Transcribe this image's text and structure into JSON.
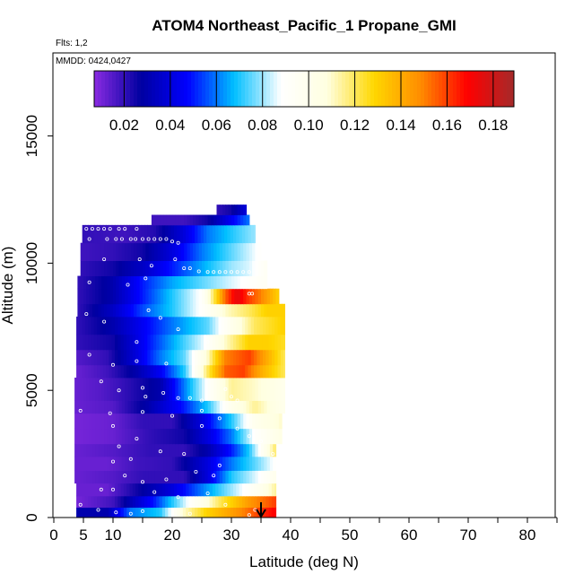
{
  "chart_data": {
    "type": "heatmap",
    "title": "ATOM4 Northeast_Pacific_1 Propane_GMI",
    "flights_note": "Flts: 1,2",
    "dates_note": "MMDD: 0424,0427",
    "xlabel": "Latitude (deg N)",
    "ylabel": "Altitude (m)",
    "xlim": [
      0,
      85
    ],
    "ylim": [
      0,
      17500
    ],
    "x_tick_labels": [
      "0",
      "5",
      "10",
      "20",
      "30",
      "40",
      "50",
      "60",
      "70",
      "80"
    ],
    "x_tick_values": [
      0,
      5,
      10,
      20,
      30,
      40,
      50,
      60,
      70,
      80
    ],
    "y_tick_labels": [
      "0",
      "5000",
      "10000",
      "15000"
    ],
    "y_tick_values": [
      0,
      5000,
      10000,
      15000
    ],
    "colorbar": {
      "range": [
        0.007,
        0.189
      ],
      "tick_labels": [
        "0.02",
        "0.04",
        "0.06",
        "0.08",
        "0.10",
        "0.12",
        "0.14",
        "0.16",
        "0.18"
      ],
      "tick_values": [
        0.02,
        0.04,
        0.06,
        0.08,
        0.1,
        0.12,
        0.14,
        0.16,
        0.18
      ],
      "colors": [
        "#8a2be2",
        "#0000a0",
        "#0000ff",
        "#00bfff",
        "#ffffff",
        "#ffffe0",
        "#ffd700",
        "#ff8c00",
        "#ff0000",
        "#a52a2a"
      ]
    },
    "grid": false,
    "arrow_marker": {
      "latitude": 35,
      "direction": "down"
    },
    "bands": [
      {
        "alt": [
          0,
          400
        ],
        "lat": [
          3.8,
          37.5
        ],
        "k": [
          [
            3.8,
            0.03
          ],
          [
            9,
            0.03
          ],
          [
            13,
            0.06
          ],
          [
            18,
            0.07
          ],
          [
            22,
            0.11
          ],
          [
            26,
            0.13
          ],
          [
            32,
            0.15
          ],
          [
            36,
            0.165
          ],
          [
            37.5,
            0.17
          ]
        ]
      },
      {
        "alt": [
          400,
          850
        ],
        "lat": [
          3.8,
          37.5
        ],
        "k": [
          [
            3.8,
            0.01
          ],
          [
            10,
            0.018
          ],
          [
            17,
            0.05
          ],
          [
            23,
            0.09
          ],
          [
            28,
            0.12
          ],
          [
            33,
            0.145
          ],
          [
            37.5,
            0.16
          ]
        ]
      },
      {
        "alt": [
          850,
          1350
        ],
        "lat": [
          3.8,
          37.5
        ],
        "k": [
          [
            3.8,
            0.012
          ],
          [
            9,
            0.012
          ],
          [
            14,
            0.025
          ],
          [
            20,
            0.04
          ],
          [
            25,
            0.06
          ],
          [
            30,
            0.08
          ],
          [
            35,
            0.1
          ],
          [
            37.5,
            0.115
          ]
        ]
      },
      {
        "alt": [
          1350,
          1850
        ],
        "lat": [
          3.5,
          37.5
        ],
        "k": [
          [
            3.5,
            0.012
          ],
          [
            10,
            0.015
          ],
          [
            15,
            0.02
          ],
          [
            22,
            0.02
          ],
          [
            26,
            0.04
          ],
          [
            30,
            0.07
          ],
          [
            34,
            0.085
          ],
          [
            37.5,
            0.1
          ]
        ]
      },
      {
        "alt": [
          1850,
          2400
        ],
        "lat": [
          3.5,
          37.5
        ],
        "k": [
          [
            3.5,
            0.012
          ],
          [
            9,
            0.012
          ],
          [
            14,
            0.018
          ],
          [
            20,
            0.02
          ],
          [
            26,
            0.04
          ],
          [
            30,
            0.06
          ],
          [
            34,
            0.075
          ],
          [
            37.5,
            0.09
          ]
        ]
      },
      {
        "alt": [
          2400,
          2900
        ],
        "lat": [
          3.5,
          37.5
        ],
        "k": [
          [
            3.5,
            0.012
          ],
          [
            10,
            0.015
          ],
          [
            16,
            0.02
          ],
          [
            22,
            0.02
          ],
          [
            26,
            0.03
          ],
          [
            30,
            0.05
          ],
          [
            33,
            0.07
          ],
          [
            37.5,
            0.12
          ]
        ]
      },
      {
        "alt": [
          2900,
          3500
        ],
        "lat": [
          3.5,
          38.5
        ],
        "k": [
          [
            3.5,
            0.01
          ],
          [
            10,
            0.012
          ],
          [
            16,
            0.02
          ],
          [
            22,
            0.025
          ],
          [
            26,
            0.04
          ],
          [
            30,
            0.06
          ],
          [
            34,
            0.09
          ],
          [
            38.5,
            0.105
          ]
        ]
      },
      {
        "alt": [
          3500,
          4100
        ],
        "lat": [
          3.5,
          38.5
        ],
        "k": [
          [
            3.5,
            0.01
          ],
          [
            10,
            0.012
          ],
          [
            15,
            0.02
          ],
          [
            20,
            0.02
          ],
          [
            25,
            0.04
          ],
          [
            30,
            0.07
          ],
          [
            34,
            0.1
          ],
          [
            38.5,
            0.11
          ]
        ]
      },
      {
        "alt": [
          4100,
          4600
        ],
        "lat": [
          3.5,
          39.0
        ],
        "k": [
          [
            3.5,
            0.012
          ],
          [
            10,
            0.015
          ],
          [
            16,
            0.03
          ],
          [
            22,
            0.05
          ],
          [
            26,
            0.07
          ],
          [
            30,
            0.1
          ],
          [
            34,
            0.115
          ],
          [
            39,
            0.1
          ]
        ]
      },
      {
        "alt": [
          4600,
          5500
        ],
        "lat": [
          3.5,
          39.0
        ],
        "k": [
          [
            3.5,
            0.012
          ],
          [
            8,
            0.015
          ],
          [
            12,
            0.02
          ],
          [
            18,
            0.03
          ],
          [
            22,
            0.06
          ],
          [
            26,
            0.09
          ],
          [
            30,
            0.115
          ],
          [
            34,
            0.11
          ],
          [
            39,
            0.1
          ]
        ]
      },
      {
        "alt": [
          5500,
          6000
        ],
        "lat": [
          3.8,
          39.0
        ],
        "k": [
          [
            3.8,
            0.012
          ],
          [
            9,
            0.018
          ],
          [
            14,
            0.03
          ],
          [
            18,
            0.045
          ],
          [
            22,
            0.07
          ],
          [
            26,
            0.12
          ],
          [
            29,
            0.155
          ],
          [
            32,
            0.16
          ],
          [
            35,
            0.14
          ],
          [
            39,
            0.12
          ]
        ]
      },
      {
        "alt": [
          6000,
          6600
        ],
        "lat": [
          3.8,
          39.0
        ],
        "k": [
          [
            3.8,
            0.015
          ],
          [
            9,
            0.02
          ],
          [
            14,
            0.04
          ],
          [
            18,
            0.06
          ],
          [
            22,
            0.075
          ],
          [
            26,
            0.11
          ],
          [
            29,
            0.15
          ],
          [
            33,
            0.16
          ],
          [
            36,
            0.14
          ],
          [
            39,
            0.12
          ]
        ]
      },
      {
        "alt": [
          6600,
          7200
        ],
        "lat": [
          3.8,
          39.0
        ],
        "k": [
          [
            3.8,
            0.02
          ],
          [
            10,
            0.025
          ],
          [
            15,
            0.045
          ],
          [
            20,
            0.065
          ],
          [
            25,
            0.085
          ],
          [
            29,
            0.11
          ],
          [
            33,
            0.13
          ],
          [
            36,
            0.13
          ],
          [
            39,
            0.125
          ]
        ]
      },
      {
        "alt": [
          7200,
          7900
        ],
        "lat": [
          3.8,
          39.0
        ],
        "k": [
          [
            3.8,
            0.02
          ],
          [
            10,
            0.03
          ],
          [
            15,
            0.045
          ],
          [
            20,
            0.06
          ],
          [
            26,
            0.075
          ],
          [
            30,
            0.1
          ],
          [
            34,
            0.12
          ],
          [
            39,
            0.13
          ]
        ]
      },
      {
        "alt": [
          7900,
          8400
        ],
        "lat": [
          4.0,
          39.0
        ],
        "k": [
          [
            4,
            0.02
          ],
          [
            10,
            0.035
          ],
          [
            15,
            0.055
          ],
          [
            20,
            0.07
          ],
          [
            25,
            0.09
          ],
          [
            29,
            0.11
          ],
          [
            33,
            0.12
          ],
          [
            36,
            0.13
          ],
          [
            39,
            0.13
          ]
        ]
      },
      {
        "alt": [
          8400,
          9000
        ],
        "lat": [
          4.0,
          38.0
        ],
        "k": [
          [
            4,
            0.02
          ],
          [
            10,
            0.03
          ],
          [
            15,
            0.05
          ],
          [
            20,
            0.07
          ],
          [
            25,
            0.09
          ],
          [
            27,
            0.12
          ],
          [
            29,
            0.155
          ],
          [
            31,
            0.175
          ],
          [
            33,
            0.16
          ],
          [
            35,
            0.15
          ],
          [
            38,
            0.13
          ]
        ]
      },
      {
        "alt": [
          9000,
          9500
        ],
        "lat": [
          4.0,
          36.0
        ],
        "k": [
          [
            4,
            0.02
          ],
          [
            10,
            0.03
          ],
          [
            15,
            0.05
          ],
          [
            20,
            0.065
          ],
          [
            25,
            0.075
          ],
          [
            30,
            0.085
          ],
          [
            33,
            0.09
          ],
          [
            36,
            0.095
          ]
        ]
      },
      {
        "alt": [
          9500,
          10100
        ],
        "lat": [
          4.5,
          36.0
        ],
        "k": [
          [
            4.5,
            0.02
          ],
          [
            10,
            0.025
          ],
          [
            15,
            0.035
          ],
          [
            20,
            0.05
          ],
          [
            25,
            0.065
          ],
          [
            30,
            0.08
          ],
          [
            33,
            0.085
          ],
          [
            36,
            0.095
          ]
        ]
      },
      {
        "alt": [
          10100,
          10800
        ],
        "lat": [
          4.5,
          35.0
        ],
        "k": [
          [
            4.5,
            0.018
          ],
          [
            10,
            0.02
          ],
          [
            15,
            0.025
          ],
          [
            20,
            0.04
          ],
          [
            25,
            0.06
          ],
          [
            30,
            0.075
          ],
          [
            35,
            0.09
          ]
        ]
      },
      {
        "alt": [
          10800,
          11500
        ],
        "lat": [
          4.8,
          34.0
        ],
        "k": [
          [
            4.8,
            0.02
          ],
          [
            12,
            0.018
          ],
          [
            17,
            0.022
          ],
          [
            22,
            0.04
          ],
          [
            26,
            0.06
          ],
          [
            30,
            0.07
          ],
          [
            34,
            0.08
          ]
        ]
      },
      {
        "alt": [
          11500,
          11900
        ],
        "lat": [
          16.5,
          33.0
        ],
        "k": [
          [
            16.5,
            0.018
          ],
          [
            22,
            0.018
          ],
          [
            26,
            0.025
          ],
          [
            30,
            0.045
          ],
          [
            33,
            0.06
          ]
        ]
      },
      {
        "alt": [
          11900,
          12300
        ],
        "lat": [
          27.5,
          32.5
        ],
        "k": [
          [
            27.5,
            0.02
          ],
          [
            30,
            0.025
          ],
          [
            32.5,
            0.04
          ]
        ]
      }
    ],
    "sample_points": [
      [
        5.5,
        11350
      ],
      [
        6.5,
        11350
      ],
      [
        7.5,
        11350
      ],
      [
        8.5,
        11350
      ],
      [
        9.5,
        11350
      ],
      [
        11,
        11350
      ],
      [
        12,
        11350
      ],
      [
        14,
        11350
      ],
      [
        6,
        10950
      ],
      [
        9,
        10950
      ],
      [
        10.5,
        10950
      ],
      [
        11.5,
        10950
      ],
      [
        13,
        10950
      ],
      [
        13.8,
        10950
      ],
      [
        15,
        10950
      ],
      [
        16,
        10950
      ],
      [
        17,
        10950
      ],
      [
        18,
        10950
      ],
      [
        19,
        10950
      ],
      [
        20,
        10850
      ],
      [
        21,
        10800
      ],
      [
        8.5,
        10150
      ],
      [
        14.5,
        10150
      ],
      [
        16.5,
        9900
      ],
      [
        20.5,
        10150
      ],
      [
        22,
        9800
      ],
      [
        23,
        9800
      ],
      [
        24.5,
        9680
      ],
      [
        26,
        9650
      ],
      [
        27,
        9650
      ],
      [
        28,
        9650
      ],
      [
        29,
        9650
      ],
      [
        30,
        9650
      ],
      [
        31,
        9650
      ],
      [
        32,
        9650
      ],
      [
        33,
        9650
      ],
      [
        6,
        9250
      ],
      [
        12.5,
        9150
      ],
      [
        15.5,
        9400
      ],
      [
        33,
        8800
      ],
      [
        33.5,
        8800
      ],
      [
        16,
        8150
      ],
      [
        18,
        7850
      ],
      [
        21,
        7400
      ],
      [
        26,
        6900
      ],
      [
        14,
        6900
      ],
      [
        5.5,
        8000
      ],
      [
        8.5,
        7700
      ],
      [
        6,
        6400
      ],
      [
        10,
        6000
      ],
      [
        14,
        6150
      ],
      [
        19,
        6050
      ],
      [
        8,
        5350
      ],
      [
        11,
        5000
      ],
      [
        15,
        5100
      ],
      [
        15.5,
        4750
      ],
      [
        18.5,
        4900
      ],
      [
        21,
        4700
      ],
      [
        23,
        4700
      ],
      [
        25,
        4600
      ],
      [
        29,
        5050
      ],
      [
        30,
        4750
      ],
      [
        31,
        4600
      ],
      [
        4.5,
        4200
      ],
      [
        9.5,
        4100
      ],
      [
        15,
        4150
      ],
      [
        20,
        4000
      ],
      [
        25,
        4200
      ],
      [
        25,
        3600
      ],
      [
        28,
        3900
      ],
      [
        31,
        3500
      ],
      [
        33,
        3200
      ],
      [
        35,
        3000
      ],
      [
        37,
        2500
      ],
      [
        10,
        3600
      ],
      [
        14,
        3100
      ],
      [
        11,
        2800
      ],
      [
        10,
        2200
      ],
      [
        13,
        2300
      ],
      [
        18,
        2600
      ],
      [
        22,
        2500
      ],
      [
        24,
        1800
      ],
      [
        19,
        1500
      ],
      [
        27,
        1650
      ],
      [
        28,
        2050
      ],
      [
        15,
        1400
      ],
      [
        10,
        1100
      ],
      [
        12,
        1650
      ],
      [
        8,
        1100
      ],
      [
        17,
        1000
      ],
      [
        21,
        800
      ],
      [
        26,
        950
      ],
      [
        29,
        500
      ],
      [
        4.5,
        500
      ],
      [
        7.5,
        300
      ],
      [
        10.5,
        200
      ],
      [
        13,
        150
      ],
      [
        15,
        250
      ],
      [
        23,
        150
      ],
      [
        33,
        100
      ],
      [
        34,
        300
      ]
    ]
  }
}
